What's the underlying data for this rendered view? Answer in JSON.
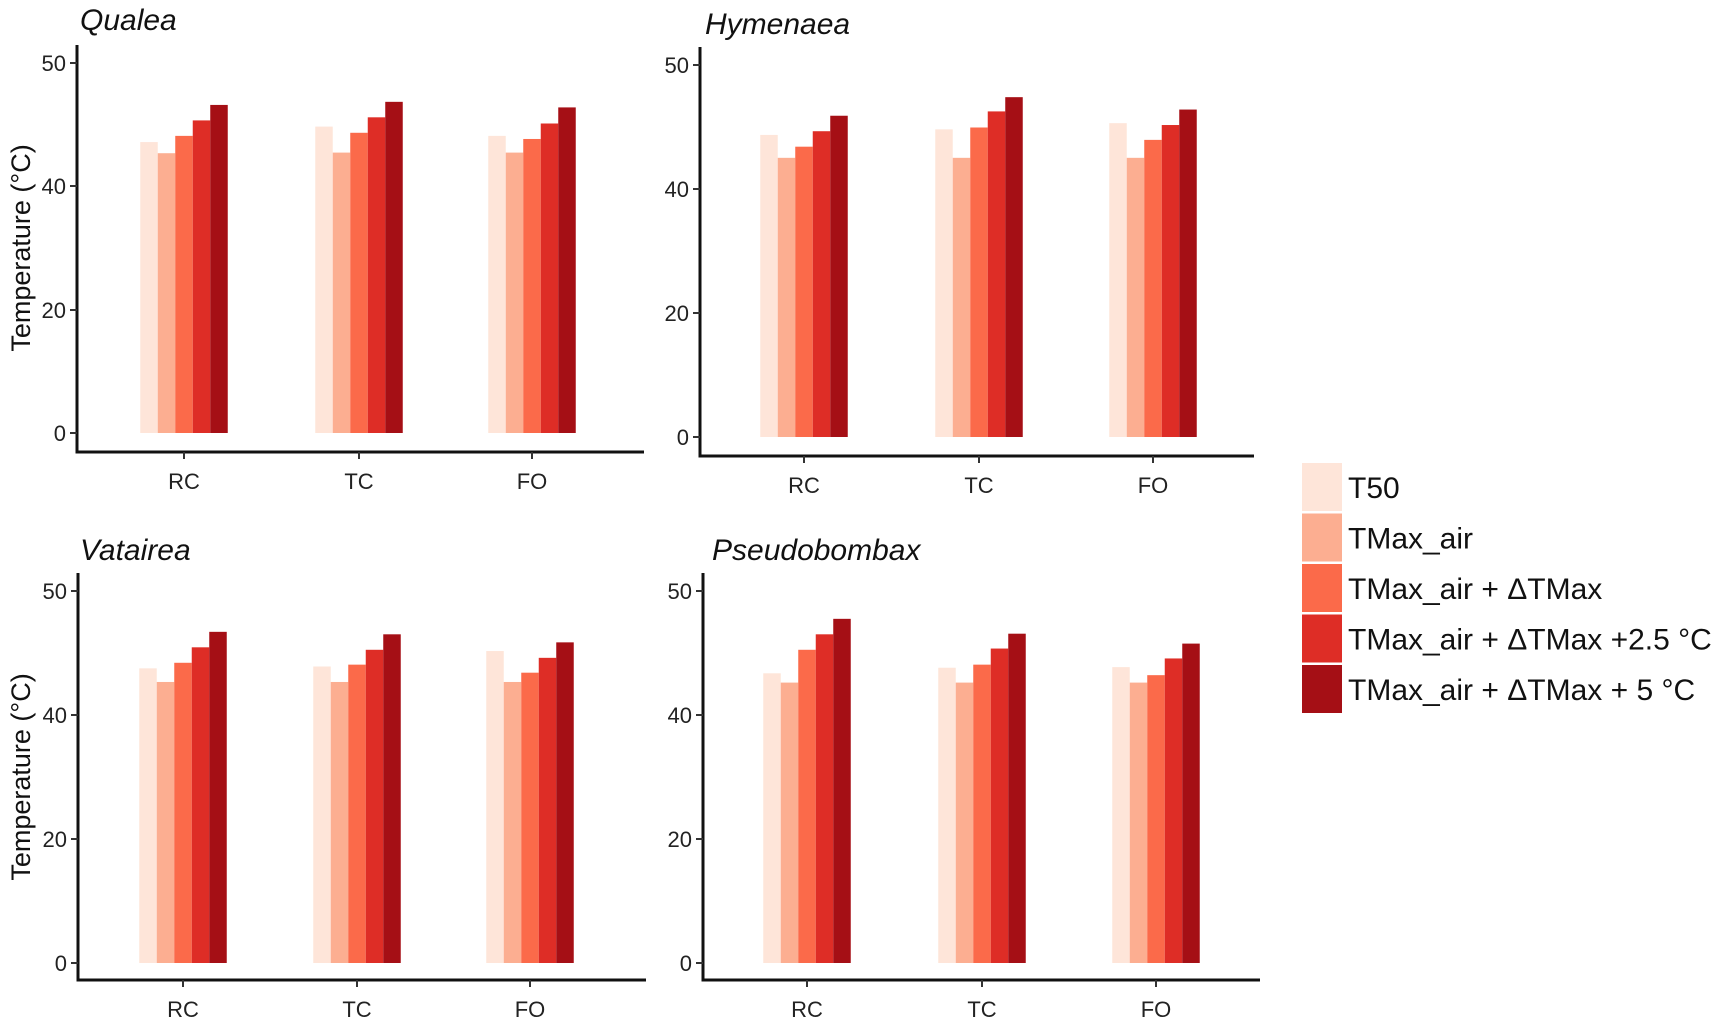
{
  "chart_data": {
    "type": "bar",
    "title": "",
    "ylabel": "Temperature (°C)",
    "xlabel": "",
    "categories": [
      "RC",
      "TC",
      "FO"
    ],
    "ytick_labels": [
      "0",
      "20",
      "40",
      "50"
    ],
    "ylim": [
      0,
      60
    ],
    "grid": false,
    "legend_position": "right",
    "series_names": [
      "T50",
      "TMax_air",
      "TMax_air + ΔTMax",
      "TMax_air + ΔTMax +2.5 °C",
      "TMax_air + ΔTMax + 5 °C"
    ],
    "colors": [
      "#FEE5D9",
      "#FCAE91",
      "#FB6A4A",
      "#DE2D26",
      "#A50F15"
    ],
    "panels": [
      {
        "title": "Qualea",
        "series": [
          {
            "name": "T50",
            "values": [
              47.0,
              49.5,
              48.0
            ]
          },
          {
            "name": "TMax_air",
            "values": [
              45.2,
              45.3,
              45.3
            ]
          },
          {
            "name": "TMax_air + ΔTMax",
            "values": [
              48.0,
              48.5,
              47.5
            ]
          },
          {
            "name": "TMax_air + ΔTMax +2.5 °C",
            "values": [
              50.5,
              51.0,
              50.0
            ]
          },
          {
            "name": "TMax_air + ΔTMax + 5 °C",
            "values": [
              53.0,
              53.5,
              52.6
            ]
          }
        ]
      },
      {
        "title": "Hymenaea",
        "series": [
          {
            "name": "T50",
            "values": [
              48.8,
              49.7,
              50.7
            ]
          },
          {
            "name": "TMax_air",
            "values": [
              45.1,
              45.1,
              45.1
            ]
          },
          {
            "name": "TMax_air + ΔTMax",
            "values": [
              46.9,
              50.0,
              48.0
            ]
          },
          {
            "name": "TMax_air + ΔTMax +2.5 °C",
            "values": [
              49.4,
              52.6,
              50.4
            ]
          },
          {
            "name": "TMax_air + ΔTMax + 5 °C",
            "values": [
              51.9,
              54.9,
              52.9
            ]
          }
        ]
      },
      {
        "title": "Vatairea",
        "series": [
          {
            "name": "T50",
            "values": [
              47.6,
              47.9,
              50.4
            ]
          },
          {
            "name": "TMax_air",
            "values": [
              45.4,
              45.4,
              45.4
            ]
          },
          {
            "name": "TMax_air + ΔTMax",
            "values": [
              48.5,
              48.2,
              46.9
            ]
          },
          {
            "name": "TMax_air + ΔTMax +2.5 °C",
            "values": [
              51.0,
              50.6,
              49.3
            ]
          },
          {
            "name": "TMax_air + ΔTMax + 5 °C",
            "values": [
              53.5,
              53.1,
              51.8
            ]
          }
        ]
      },
      {
        "title": "Pseudobombax",
        "series": [
          {
            "name": "T50",
            "values": [
              46.8,
              47.7,
              47.8
            ]
          },
          {
            "name": "TMax_air",
            "values": [
              45.3,
              45.3,
              45.3
            ]
          },
          {
            "name": "TMax_air + ΔTMax",
            "values": [
              50.6,
              48.2,
              46.5
            ]
          },
          {
            "name": "TMax_air + ΔTMax +2.5 °C",
            "values": [
              53.1,
              50.8,
              49.2
            ]
          },
          {
            "name": "TMax_air + ΔTMax + 5 °C",
            "values": [
              55.6,
              53.2,
              51.6
            ]
          }
        ]
      }
    ]
  }
}
